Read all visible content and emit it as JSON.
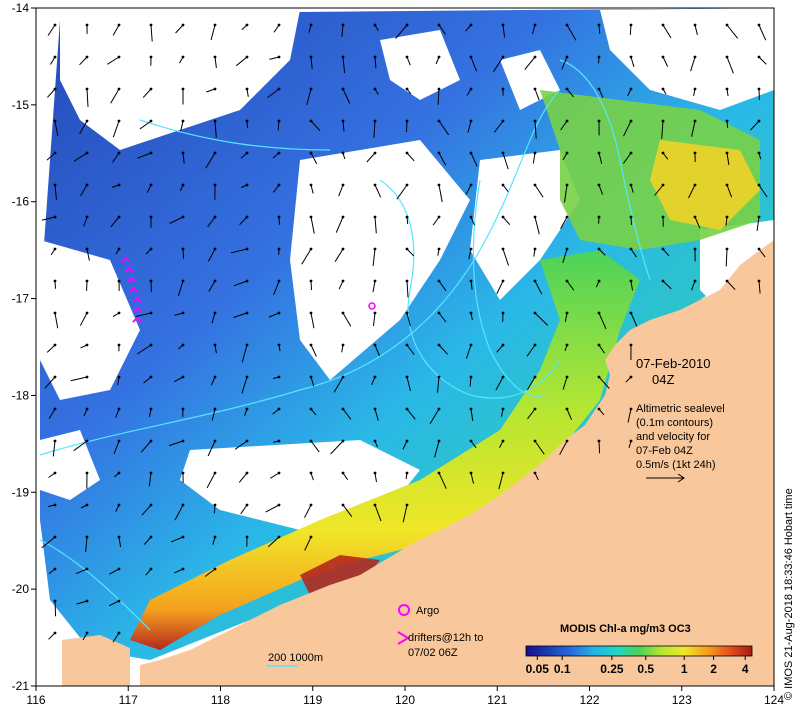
{
  "map": {
    "x_axis": {
      "ticks": [
        "116",
        "117",
        "118",
        "119",
        "120",
        "121",
        "122",
        "123",
        "124"
      ],
      "range": [
        116,
        124
      ]
    },
    "y_axis": {
      "ticks": [
        "-14",
        "-15",
        "-16",
        "-17",
        "-18",
        "-19",
        "-20",
        "-21"
      ],
      "range": [
        -21,
        -14
      ]
    },
    "colors": {
      "land": "#f8c89c",
      "ocean_low": "#1a3fb4",
      "ocean_mid": "#1fb4e6",
      "ocean_high": "#b4281e",
      "contour": "#55e6ff",
      "argo": "#ff00ff",
      "drifter": "#ff00ff"
    }
  },
  "date_box": {
    "date": "07-Feb-2010",
    "time": "04Z"
  },
  "altimetry_note": {
    "lines": [
      "Altimetric sealevel",
      "(0.1m contours)",
      "and velocity for",
      "07-Feb 04Z",
      "0.5m/s (1kt 24h)"
    ]
  },
  "legend": {
    "argo_label": "Argo",
    "drifters_line1": "drifters@12h to",
    "drifters_line2": "07/02 06Z",
    "scale_label": "200  1000m"
  },
  "colorbar": {
    "title": "MODIS Chl-a mg/m3 OC3",
    "ticks": [
      "0.05",
      "0.1",
      "0.25",
      "0.5",
      "1",
      "2",
      "4"
    ],
    "stops": [
      "#1a0a8c",
      "#1a3fb4",
      "#2a6ae0",
      "#1fb4e6",
      "#22d6c8",
      "#4cd25a",
      "#b4e632",
      "#f0e628",
      "#f5a01e",
      "#e6501e",
      "#a01e14"
    ]
  },
  "credit": "© IMOS 21-Aug-2018 18:33:46 Hobart time"
}
